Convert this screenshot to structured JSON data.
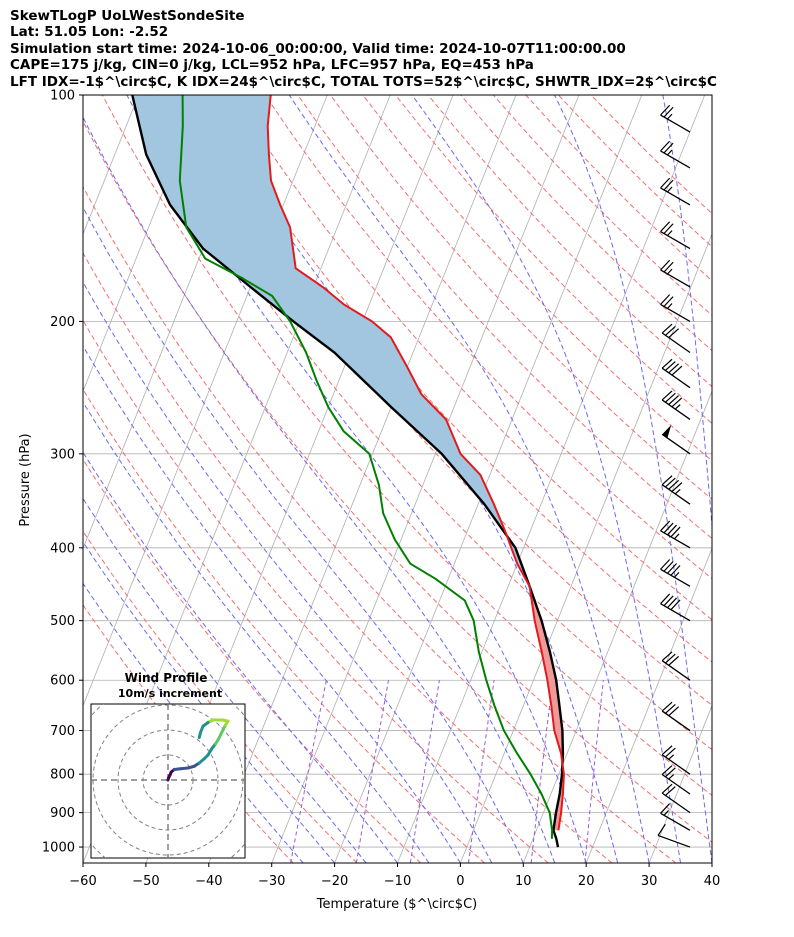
{
  "header": {
    "line1": "SkewTLogP UoLWestSondeSite",
    "line2": "Lat: 51.05   Lon: -2.52",
    "line3": "Simulation start time: 2024-10-06_00:00:00, Valid time: 2024-10-07T11:00:00.00",
    "line4": "CAPE=175 j/kg, CIN=0 j/kg, LCL=952 hPa, LFC=957 hPa, EQ=453 hPa",
    "line5": "LFT IDX=-1$^\\circ$C, K IDX=24$^\\circ$C, TOTAL TOTS=52$^\\circ$C, SHWTR_IDX=2$^\\circ$C"
  },
  "chart_data": {
    "type": "line",
    "title": "",
    "xlabel": "Temperature ($^\\circ$C)",
    "ylabel": "Pressure (hPa)",
    "xlim": [
      -60,
      40
    ],
    "ylim": [
      1050,
      100
    ],
    "y_scale": "log",
    "x_ticks": [
      "−60",
      "−50",
      "−40",
      "−30",
      "−20",
      "−10",
      "0",
      "10",
      "20",
      "30",
      "40"
    ],
    "y_ticks": [
      "1000",
      "900",
      "800",
      "700",
      "600",
      "500",
      "400",
      "300",
      "200",
      "100"
    ],
    "skew": "isotherms slanted to the right with height",
    "grid": true,
    "colors": {
      "temperature": "#e31a1c",
      "dewpoint": "#008000",
      "parcel": "#000000",
      "cape_fill": "#a3c6e0",
      "cin_fill": "#ef9a9a",
      "dry_adiabats": "#f07070",
      "moist_adiabats": "#6a6af0",
      "mixing_ratio": "#9a5ad0",
      "isotherms": "#b0b0b0"
    },
    "series": [
      {
        "key": "temperature",
        "points": [
          [
            13.5,
            950
          ],
          [
            12.8,
            900
          ],
          [
            11.9,
            850
          ],
          [
            10.8,
            800
          ],
          [
            9.0,
            750
          ],
          [
            6.5,
            700
          ],
          [
            4.5,
            650
          ],
          [
            2.2,
            600
          ],
          [
            -0.5,
            550
          ],
          [
            -3.6,
            500
          ],
          [
            -6.6,
            450
          ],
          [
            -10.0,
            420
          ],
          [
            -14.0,
            380
          ],
          [
            -17.5,
            350
          ],
          [
            -21.5,
            320
          ],
          [
            -26.0,
            300
          ],
          [
            -30.5,
            270
          ],
          [
            -36.0,
            250
          ],
          [
            -40.0,
            230
          ],
          [
            -44.5,
            210
          ],
          [
            -48.5,
            200
          ],
          [
            -54.0,
            190
          ],
          [
            -58.5,
            180
          ],
          [
            -64.0,
            170
          ],
          [
            -67.5,
            150
          ],
          [
            -70.5,
            140
          ],
          [
            -73.5,
            130
          ],
          [
            -75.5,
            120
          ],
          [
            -77.5,
            110
          ],
          [
            -79.0,
            100
          ]
        ]
      },
      {
        "key": "dewpoint",
        "points": [
          [
            13.0,
            975
          ],
          [
            12.5,
            950
          ],
          [
            11.0,
            900
          ],
          [
            8.5,
            850
          ],
          [
            5.5,
            800
          ],
          [
            2.0,
            750
          ],
          [
            -1.5,
            700
          ],
          [
            -4.5,
            650
          ],
          [
            -7.5,
            600
          ],
          [
            -10.5,
            550
          ],
          [
            -13.3,
            500
          ],
          [
            -16.0,
            470
          ],
          [
            -22.0,
            440
          ],
          [
            -27.0,
            420
          ],
          [
            -31.0,
            390
          ],
          [
            -34.5,
            360
          ],
          [
            -37.0,
            330
          ],
          [
            -40.5,
            300
          ],
          [
            -46.0,
            280
          ],
          [
            -50.0,
            260
          ],
          [
            -53.5,
            240
          ],
          [
            -57.0,
            220
          ],
          [
            -61.5,
            200
          ],
          [
            -66.0,
            185
          ],
          [
            -72.0,
            175
          ],
          [
            -79.0,
            165
          ],
          [
            -84.0,
            150
          ],
          [
            -88.0,
            130
          ],
          [
            -91.0,
            110
          ],
          [
            -93.0,
            100
          ]
        ]
      },
      {
        "key": "parcel",
        "points": [
          [
            14.5,
            1000
          ],
          [
            13.7,
            975
          ],
          [
            12.7,
            950
          ],
          [
            12.0,
            900
          ],
          [
            11.4,
            850
          ],
          [
            10.5,
            800
          ],
          [
            9.3,
            750
          ],
          [
            7.8,
            700
          ],
          [
            5.8,
            650
          ],
          [
            3.6,
            600
          ],
          [
            0.8,
            550
          ],
          [
            -2.5,
            500
          ],
          [
            -6.6,
            450
          ],
          [
            -11.3,
            400
          ],
          [
            -19.0,
            350
          ],
          [
            -29.0,
            300
          ],
          [
            -40.0,
            260
          ],
          [
            -52.5,
            220
          ],
          [
            -61.0,
            200
          ],
          [
            -70.0,
            180
          ],
          [
            -80.0,
            160
          ],
          [
            -88.0,
            140
          ],
          [
            -95.0,
            120
          ],
          [
            -101.0,
            100
          ]
        ]
      }
    ],
    "wind_barbs": {
      "speed_units": "knots",
      "barbs": [
        {
          "p": 1000,
          "spd": 12,
          "dir": 290
        },
        {
          "p": 950,
          "spd": 17,
          "dir": 300
        },
        {
          "p": 900,
          "spd": 22,
          "dir": 305
        },
        {
          "p": 850,
          "spd": 25,
          "dir": 305
        },
        {
          "p": 800,
          "spd": 27,
          "dir": 305
        },
        {
          "p": 700,
          "spd": 30,
          "dir": 305
        },
        {
          "p": 600,
          "spd": 32,
          "dir": 305
        },
        {
          "p": 500,
          "spd": 40,
          "dir": 300
        },
        {
          "p": 450,
          "spd": 45,
          "dir": 300
        },
        {
          "p": 400,
          "spd": 45,
          "dir": 300
        },
        {
          "p": 350,
          "spd": 45,
          "dir": 305
        },
        {
          "p": 300,
          "spd": 50,
          "dir": 305
        },
        {
          "p": 270,
          "spd": 45,
          "dir": 305
        },
        {
          "p": 245,
          "spd": 40,
          "dir": 305
        },
        {
          "p": 220,
          "spd": 30,
          "dir": 305
        },
        {
          "p": 200,
          "spd": 25,
          "dir": 300
        },
        {
          "p": 180,
          "spd": 25,
          "dir": 300
        },
        {
          "p": 160,
          "spd": 25,
          "dir": 300
        },
        {
          "p": 140,
          "spd": 25,
          "dir": 300
        },
        {
          "p": 125,
          "spd": 25,
          "dir": 300
        },
        {
          "p": 112,
          "spd": 25,
          "dir": 300
        }
      ]
    },
    "hodograph": {
      "title": "Wind Profile",
      "subtitle": "10m/s increment",
      "rings_ms": [
        10,
        20,
        30,
        40
      ],
      "hodo_points": [
        [
          0,
          0
        ],
        [
          0.3,
          1.0
        ],
        [
          0.8,
          2.0
        ],
        [
          1.3,
          3.2
        ],
        [
          2.5,
          4.2
        ],
        [
          5,
          4.5
        ],
        [
          8,
          4.8
        ],
        [
          10.5,
          5.5
        ],
        [
          12.5,
          6.8
        ],
        [
          14.5,
          8.5
        ],
        [
          16.0,
          10.0
        ],
        [
          17.5,
          12.5
        ],
        [
          19.0,
          14.5
        ],
        [
          20.0,
          16.0
        ],
        [
          21.0,
          18.0
        ],
        [
          22.0,
          20.0
        ],
        [
          23.0,
          22.0
        ],
        [
          24.0,
          23.5
        ],
        [
          22.0,
          24.0
        ],
        [
          18.0,
          24.0
        ],
        [
          16.0,
          23.0
        ],
        [
          14.0,
          21.5
        ],
        [
          13.0,
          19.0
        ],
        [
          12.5,
          17.0
        ]
      ],
      "colormap": [
        "#440154",
        "#3b528b",
        "#21918c",
        "#5ec962",
        "#a0da39",
        "#21918c"
      ]
    }
  }
}
